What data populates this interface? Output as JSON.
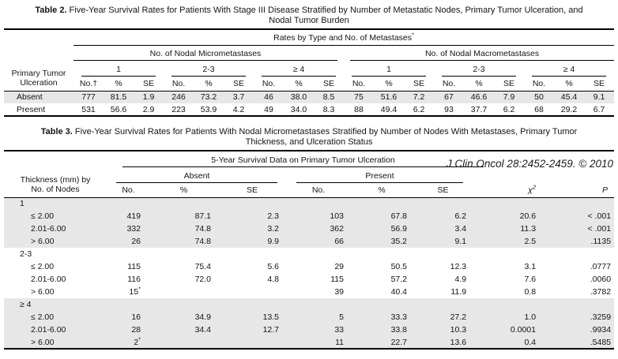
{
  "citation": "J Clin Oncol 28:2452-2459. © 2010",
  "table2": {
    "title_label": "Table 2.",
    "title_text": " Five-Year Survival Rates for Patients With Stage III Disease Stratified by Number of Metastatic Nodes, Primary Tumor Ulceration, and Nodal Tumor Burden",
    "spanner": "Rates by Type and No. of Metastases",
    "spanner_mark": "*",
    "group_left": "No. of Nodal Micrometastases",
    "group_right": "No. of Nodal Macrometastases",
    "subgroups": [
      "1",
      "2-3",
      "≥ 4",
      "1",
      "2-3",
      "≥ 4"
    ],
    "col_headers": [
      "No.†",
      "%",
      "SE",
      "No.",
      "%",
      "SE",
      "No.",
      "%",
      "SE",
      "No.",
      "%",
      "SE",
      "No.",
      "%",
      "SE",
      "No.",
      "%",
      "SE"
    ],
    "row_header_line1": "Primary Tumor",
    "row_header_line2": "Ulceration",
    "rows": [
      {
        "label": "Absent",
        "shaded": true,
        "values": [
          "777",
          "81.5",
          "1.9",
          "246",
          "73.2",
          "3.7",
          "46",
          "38.0",
          "8.5",
          "75",
          "51.6",
          "7.2",
          "67",
          "46.6",
          "7.9",
          "50",
          "45.4",
          "9.1"
        ]
      },
      {
        "label": "Present",
        "shaded": false,
        "values": [
          "531",
          "56.6",
          "2.9",
          "223",
          "53.9",
          "4.2",
          "49",
          "34.0",
          "8.3",
          "88",
          "49.4",
          "6.2",
          "93",
          "37.7",
          "6.2",
          "68",
          "29.2",
          "6.7"
        ]
      }
    ]
  },
  "table3": {
    "title_label": "Table 3.",
    "title_text": " Five-Year Survival Rates for Patients With Nodal Micrometastases Stratified by Number of Nodes With Metastases, Primary Tumor Thickness, and Ulceration Status",
    "spanner": "5-Year Survival Data on Primary Tumor Ulceration",
    "group_absent": "Absent",
    "group_present": "Present",
    "col_headers": [
      "No.",
      "%",
      "SE",
      "No.",
      "%",
      "SE"
    ],
    "chi_base": "χ",
    "chi_sup": "2",
    "p_header": "P",
    "row_header_line1": "Thickness (mm) by",
    "row_header_line2": "No. of Nodes",
    "groups": [
      {
        "label": "1",
        "shaded": true,
        "rows": [
          {
            "label": "≤ 2.00",
            "values": [
              "419",
              "87.1",
              "2.3",
              "103",
              "67.8",
              "6.2",
              "20.6",
              "< .001"
            ]
          },
          {
            "label": "2.01-6.00",
            "values": [
              "332",
              "74.8",
              "3.2",
              "362",
              "56.9",
              "3.4",
              "11.3",
              "< .001"
            ]
          },
          {
            "label": "> 6.00",
            "values": [
              "26",
              "74.8",
              "9.9",
              "66",
              "35.2",
              "9.1",
              "2.5",
              ".1135"
            ]
          }
        ]
      },
      {
        "label": "2-3",
        "shaded": false,
        "rows": [
          {
            "label": "≤ 2.00",
            "values": [
              "115",
              "75.4",
              "5.6",
              "29",
              "50.5",
              "12.3",
              "3.1",
              ".0777"
            ]
          },
          {
            "label": "2.01-6.00",
            "values": [
              "116",
              "72.0",
              "4.8",
              "115",
              "57.2",
              "4.9",
              "7.6",
              ".0060"
            ]
          },
          {
            "label": "> 6.00",
            "values": [
              "15*",
              "",
              "",
              "39",
              "40.4",
              "11.9",
              "0.8",
              ".3782"
            ]
          }
        ]
      },
      {
        "label": "≥ 4",
        "shaded": true,
        "rows": [
          {
            "label": "≤ 2.00",
            "values": [
              "16",
              "34.9",
              "13.5",
              "5",
              "33.3",
              "27.2",
              "1.0",
              ".3259"
            ]
          },
          {
            "label": "2.01-6.00",
            "values": [
              "28",
              "34.4",
              "12.7",
              "33",
              "33.8",
              "10.3",
              "0.0001",
              ".9934"
            ]
          },
          {
            "label": "> 6.00",
            "values": [
              "2*",
              "",
              "",
              "11",
              "22.7",
              "13.6",
              "0.4",
              ".5485"
            ]
          }
        ]
      }
    ]
  },
  "colors": {
    "row_shading": "#e7e7e7",
    "rule": "#000000",
    "text": "#141414"
  }
}
